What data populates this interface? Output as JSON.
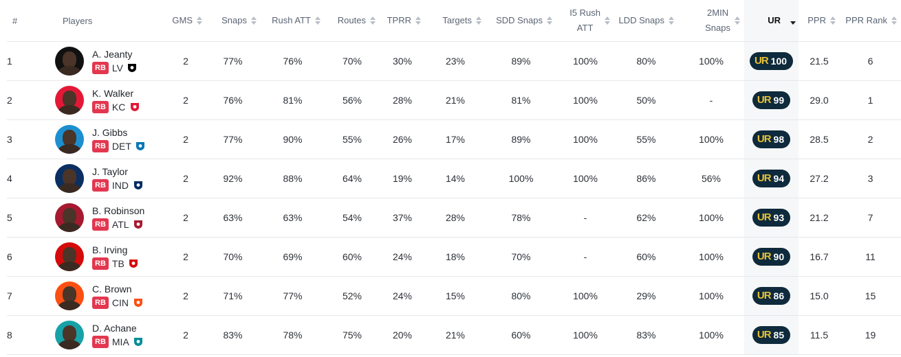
{
  "colors": {
    "position_badge": "#e3374f",
    "ur_pill": "#0e2a3c",
    "ur_mark": "#e9c234",
    "ur_column_bg": "#f6f7f8"
  },
  "ur_logo_text": "UR",
  "columns": [
    {
      "key": "num",
      "label": "#"
    },
    {
      "key": "players",
      "label": "Players"
    },
    {
      "key": "gms",
      "label": "GMS"
    },
    {
      "key": "snaps",
      "label": "Snaps"
    },
    {
      "key": "rush_att",
      "label": "Rush ATT"
    },
    {
      "key": "routes",
      "label": "Routes"
    },
    {
      "key": "tprr",
      "label": "TPRR"
    },
    {
      "key": "targets",
      "label": "Targets"
    },
    {
      "key": "sdd_snaps",
      "label": "SDD Snaps"
    },
    {
      "key": "i5_rush_att",
      "label_line1": "I5 Rush",
      "label_line2": "ATT"
    },
    {
      "key": "ldd_snaps",
      "label": "LDD Snaps"
    },
    {
      "key": "two_min_snaps",
      "label_line1": "2MIN",
      "label_line2": "Snaps"
    },
    {
      "key": "ur",
      "label": "UR",
      "sort": "desc"
    },
    {
      "key": "ppr",
      "label": "PPR"
    },
    {
      "key": "ppr_rank",
      "label": "PPR Rank"
    }
  ],
  "rows": [
    {
      "num": "1",
      "name": "A. Jeanty",
      "pos": "RB",
      "team": "LV",
      "team_logo": "raiders-shield-icon",
      "logo_color": "#000000",
      "avatar_bg": "#111111",
      "gms": "2",
      "snaps": "77%",
      "rush_att": "76%",
      "routes": "70%",
      "tprr": "30%",
      "targets": "23%",
      "sdd_snaps": "89%",
      "i5_rush_att": "100%",
      "ldd_snaps": "80%",
      "two_min_snaps": "100%",
      "ur": "100",
      "ppr": "21.5",
      "ppr_rank": "6"
    },
    {
      "num": "2",
      "name": "K. Walker",
      "pos": "RB",
      "team": "KC",
      "team_logo": "chiefs-arrowhead-icon",
      "logo_color": "#e31837",
      "avatar_bg": "#e31837",
      "gms": "2",
      "snaps": "76%",
      "rush_att": "81%",
      "routes": "56%",
      "tprr": "28%",
      "targets": "21%",
      "sdd_snaps": "81%",
      "i5_rush_att": "100%",
      "ldd_snaps": "50%",
      "two_min_snaps": "-",
      "ur": "99",
      "ppr": "29.0",
      "ppr_rank": "1"
    },
    {
      "num": "3",
      "name": "J. Gibbs",
      "pos": "RB",
      "team": "DET",
      "team_logo": "lions-icon",
      "logo_color": "#0076b6",
      "avatar_bg": "#1c8fd0",
      "gms": "2",
      "snaps": "77%",
      "rush_att": "90%",
      "routes": "55%",
      "tprr": "26%",
      "targets": "17%",
      "sdd_snaps": "89%",
      "i5_rush_att": "100%",
      "ldd_snaps": "55%",
      "two_min_snaps": "100%",
      "ur": "98",
      "ppr": "28.5",
      "ppr_rank": "2"
    },
    {
      "num": "4",
      "name": "J. Taylor",
      "pos": "RB",
      "team": "IND",
      "team_logo": "colts-horseshoe-icon",
      "logo_color": "#002c5f",
      "avatar_bg": "#0b2f61",
      "gms": "2",
      "snaps": "92%",
      "rush_att": "88%",
      "routes": "64%",
      "tprr": "19%",
      "targets": "14%",
      "sdd_snaps": "100%",
      "i5_rush_att": "100%",
      "ldd_snaps": "86%",
      "two_min_snaps": "56%",
      "ur": "94",
      "ppr": "27.2",
      "ppr_rank": "3"
    },
    {
      "num": "5",
      "name": "B. Robinson",
      "pos": "RB",
      "team": "ATL",
      "team_logo": "falcons-icon",
      "logo_color": "#a71930",
      "avatar_bg": "#a71930",
      "gms": "2",
      "snaps": "63%",
      "rush_att": "63%",
      "routes": "54%",
      "tprr": "37%",
      "targets": "28%",
      "sdd_snaps": "78%",
      "i5_rush_att": "-",
      "ldd_snaps": "62%",
      "two_min_snaps": "100%",
      "ur": "93",
      "ppr": "21.2",
      "ppr_rank": "7"
    },
    {
      "num": "6",
      "name": "B. Irving",
      "pos": "RB",
      "team": "TB",
      "team_logo": "buccaneers-flag-icon",
      "logo_color": "#d50a0a",
      "avatar_bg": "#d50a0a",
      "gms": "2",
      "snaps": "70%",
      "rush_att": "69%",
      "routes": "60%",
      "tprr": "24%",
      "targets": "18%",
      "sdd_snaps": "70%",
      "i5_rush_att": "-",
      "ldd_snaps": "60%",
      "two_min_snaps": "100%",
      "ur": "90",
      "ppr": "16.7",
      "ppr_rank": "11"
    },
    {
      "num": "7",
      "name": "C. Brown",
      "pos": "RB",
      "team": "CIN",
      "team_logo": "bengals-icon",
      "logo_color": "#fb4f14",
      "avatar_bg": "#fb4f14",
      "gms": "2",
      "snaps": "71%",
      "rush_att": "77%",
      "routes": "52%",
      "tprr": "24%",
      "targets": "15%",
      "sdd_snaps": "80%",
      "i5_rush_att": "100%",
      "ldd_snaps": "29%",
      "two_min_snaps": "100%",
      "ur": "86",
      "ppr": "15.0",
      "ppr_rank": "15"
    },
    {
      "num": "8",
      "name": "D. Achane",
      "pos": "RB",
      "team": "MIA",
      "team_logo": "dolphins-icon",
      "logo_color": "#008e97",
      "avatar_bg": "#17a2a8",
      "gms": "2",
      "snaps": "83%",
      "rush_att": "78%",
      "routes": "75%",
      "tprr": "20%",
      "targets": "21%",
      "sdd_snaps": "60%",
      "i5_rush_att": "100%",
      "ldd_snaps": "83%",
      "two_min_snaps": "100%",
      "ur": "85",
      "ppr": "11.5",
      "ppr_rank": "19"
    }
  ]
}
